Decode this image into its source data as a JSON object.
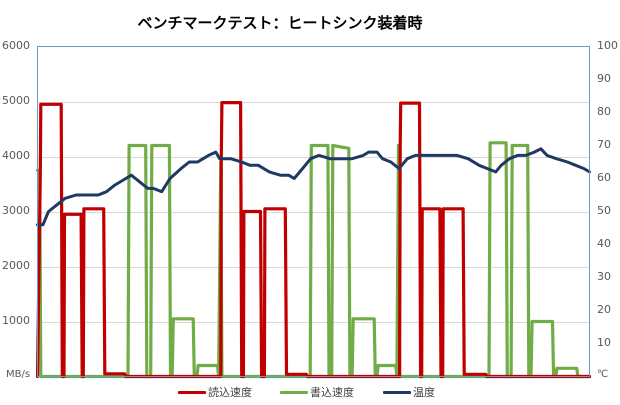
{
  "chart_data": {
    "type": "line",
    "title": "ベンチマークテスト：ヒートシンク装着時",
    "xlabel": "",
    "ylabel": "MB/s",
    "y2label": "℃",
    "ylim": [
      0,
      6000
    ],
    "y2lim": [
      0,
      100
    ],
    "yticks": [
      0,
      1000,
      2000,
      3000,
      4000,
      5000,
      6000
    ],
    "yticks_labels": [
      "MB/s",
      "1000",
      "2000",
      "3000",
      "4000",
      "5000",
      "6000"
    ],
    "y2ticks": [
      0,
      10,
      20,
      30,
      40,
      50,
      60,
      70,
      80,
      90,
      100
    ],
    "y2ticks_labels": [
      "℃",
      "10",
      "20",
      "30",
      "40",
      "50",
      "60",
      "70",
      "80",
      "90",
      "100"
    ],
    "grid": true,
    "legend_position": "bottom",
    "x_unit": "percent of elapsed test time",
    "series": [
      {
        "name": "読込速度",
        "axis": "left",
        "color": "#C00000",
        "points": [
          [
            0,
            0
          ],
          [
            0.5,
            3700
          ],
          [
            0.6,
            4950
          ],
          [
            4.3,
            4950
          ],
          [
            4.5,
            0
          ],
          [
            4.8,
            0
          ],
          [
            4.9,
            2950
          ],
          [
            7.9,
            2950
          ],
          [
            8.1,
            0
          ],
          [
            8.3,
            0
          ],
          [
            8.4,
            3050
          ],
          [
            12.0,
            3050
          ],
          [
            12.2,
            50
          ],
          [
            15.8,
            50
          ],
          [
            16.0,
            0
          ],
          [
            33.2,
            0
          ],
          [
            33.3,
            4000
          ],
          [
            33.4,
            4980
          ],
          [
            36.8,
            4980
          ],
          [
            37.0,
            0
          ],
          [
            37.3,
            0
          ],
          [
            37.4,
            3000
          ],
          [
            40.4,
            3000
          ],
          [
            40.6,
            0
          ],
          [
            41.1,
            0
          ],
          [
            41.2,
            3050
          ],
          [
            44.9,
            3050
          ],
          [
            45.1,
            40
          ],
          [
            48.7,
            40
          ],
          [
            48.9,
            0
          ],
          [
            65.6,
            0
          ],
          [
            65.7,
            4200
          ],
          [
            65.8,
            4970
          ],
          [
            69.2,
            4970
          ],
          [
            69.4,
            0
          ],
          [
            69.6,
            0
          ],
          [
            69.7,
            3050
          ],
          [
            72.9,
            3050
          ],
          [
            73.1,
            0
          ],
          [
            73.4,
            0
          ],
          [
            73.5,
            3050
          ],
          [
            77.1,
            3050
          ],
          [
            77.3,
            40
          ],
          [
            81.2,
            40
          ],
          [
            81.4,
            0
          ],
          [
            100,
            0
          ]
        ]
      },
      {
        "name": "書込速度",
        "axis": "left",
        "color": "#70AD47",
        "points": [
          [
            0,
            3750
          ],
          [
            0.4,
            3750
          ],
          [
            0.6,
            0
          ],
          [
            16.4,
            0
          ],
          [
            16.6,
            4200
          ],
          [
            19.6,
            4200
          ],
          [
            19.8,
            0
          ],
          [
            20.5,
            0
          ],
          [
            20.7,
            4200
          ],
          [
            23.9,
            4200
          ],
          [
            24.1,
            0
          ],
          [
            24.4,
            0
          ],
          [
            24.6,
            1050
          ],
          [
            28.2,
            1050
          ],
          [
            28.4,
            0
          ],
          [
            28.9,
            0
          ],
          [
            29.1,
            200
          ],
          [
            32.6,
            200
          ],
          [
            32.8,
            0
          ],
          [
            33.2,
            3900
          ],
          [
            33.4,
            0
          ],
          [
            49.4,
            0
          ],
          [
            49.6,
            4200
          ],
          [
            52.6,
            4200
          ],
          [
            52.8,
            0
          ],
          [
            53.3,
            0
          ],
          [
            53.5,
            4200
          ],
          [
            56.4,
            4150
          ],
          [
            56.6,
            0
          ],
          [
            57.0,
            0
          ],
          [
            57.2,
            1050
          ],
          [
            61.0,
            1050
          ],
          [
            61.2,
            0
          ],
          [
            61.5,
            0
          ],
          [
            61.7,
            200
          ],
          [
            64.9,
            200
          ],
          [
            65.1,
            0
          ],
          [
            65.4,
            4200
          ],
          [
            65.6,
            0
          ],
          [
            81.8,
            0
          ],
          [
            82.0,
            4250
          ],
          [
            84.9,
            4250
          ],
          [
            85.1,
            0
          ],
          [
            85.8,
            0
          ],
          [
            86.0,
            4200
          ],
          [
            88.8,
            4200
          ],
          [
            89.0,
            0
          ],
          [
            89.4,
            0
          ],
          [
            89.6,
            1000
          ],
          [
            93.3,
            1000
          ],
          [
            93.5,
            0
          ],
          [
            93.9,
            0
          ],
          [
            94.1,
            150
          ],
          [
            97.7,
            150
          ],
          [
            97.9,
            0
          ],
          [
            100,
            0
          ]
        ]
      },
      {
        "name": "温度",
        "axis": "right",
        "color": "#203864",
        "points": [
          [
            0,
            46
          ],
          [
            1,
            46
          ],
          [
            2,
            50
          ],
          [
            3.5,
            52
          ],
          [
            5,
            54
          ],
          [
            7,
            55
          ],
          [
            9,
            55
          ],
          [
            11,
            55
          ],
          [
            12.5,
            56
          ],
          [
            14,
            58
          ],
          [
            16,
            60
          ],
          [
            17,
            61
          ],
          [
            18.5,
            59
          ],
          [
            20,
            57
          ],
          [
            21,
            57
          ],
          [
            22.5,
            56
          ],
          [
            24,
            60
          ],
          [
            26,
            63
          ],
          [
            27.5,
            65
          ],
          [
            29,
            65
          ],
          [
            30,
            66
          ],
          [
            31,
            67
          ],
          [
            32.3,
            68
          ],
          [
            33,
            66
          ],
          [
            35,
            66
          ],
          [
            37,
            65
          ],
          [
            38.5,
            64
          ],
          [
            40,
            64
          ],
          [
            42,
            62
          ],
          [
            44,
            61
          ],
          [
            45.5,
            61
          ],
          [
            46.5,
            60
          ],
          [
            48,
            63
          ],
          [
            49.5,
            66
          ],
          [
            51,
            67
          ],
          [
            53,
            66
          ],
          [
            55,
            66
          ],
          [
            57,
            66
          ],
          [
            59,
            67
          ],
          [
            60,
            68
          ],
          [
            61.5,
            68
          ],
          [
            62.5,
            66
          ],
          [
            64,
            65
          ],
          [
            65.5,
            63
          ],
          [
            67,
            66
          ],
          [
            68.5,
            67
          ],
          [
            70,
            67
          ],
          [
            72,
            67
          ],
          [
            74,
            67
          ],
          [
            76,
            67
          ],
          [
            78,
            66
          ],
          [
            80,
            64
          ],
          [
            81.5,
            63
          ],
          [
            83,
            62
          ],
          [
            84,
            64
          ],
          [
            85.5,
            66
          ],
          [
            87,
            67
          ],
          [
            88.5,
            67
          ],
          [
            90,
            68
          ],
          [
            91.2,
            69
          ],
          [
            92.3,
            67
          ],
          [
            94,
            66
          ],
          [
            96,
            65
          ],
          [
            97.5,
            64
          ],
          [
            99,
            63
          ],
          [
            100,
            62
          ]
        ]
      }
    ]
  },
  "legend": {
    "items": [
      {
        "label": "読込速度",
        "color": "#C00000"
      },
      {
        "label": "書込速度",
        "color": "#70AD47"
      },
      {
        "label": "温度",
        "color": "#203864"
      }
    ]
  },
  "colors": {
    "gridline": "#D9D9D9",
    "plot_border": "#4F81BD",
    "read": "#C00000",
    "write": "#70AD47",
    "temp": "#203864"
  }
}
